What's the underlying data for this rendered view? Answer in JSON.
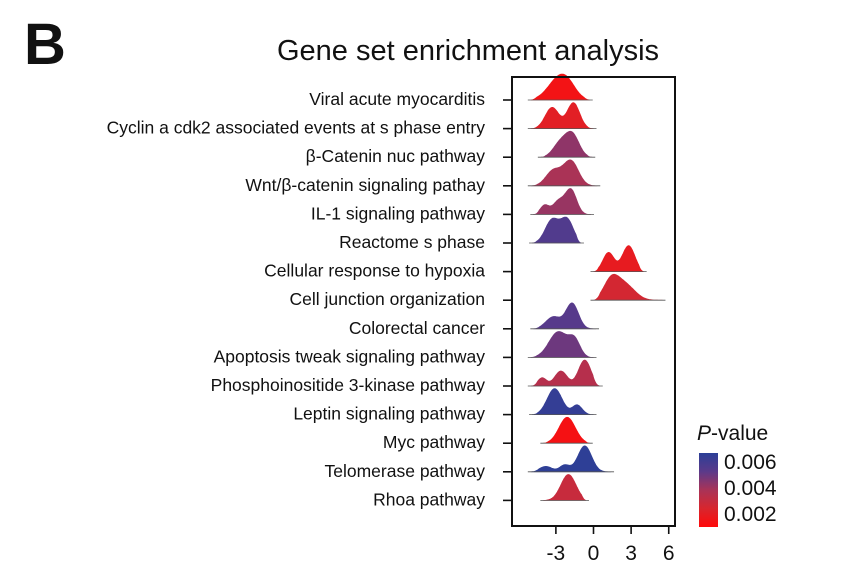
{
  "panel_label": "B",
  "legend": {
    "title_italic": "P",
    "title_rest": "-value",
    "ticks": [
      "0.006",
      "0.004",
      "0.002"
    ],
    "color_stops": [
      "#2b3f97",
      "#5b3a8a",
      "#a93357",
      "#d8262e",
      "#ff0a0a"
    ]
  },
  "chart_data": {
    "type": "ridgeline",
    "title": "Gene set enrichment analysis",
    "xlabel": "",
    "ylabel": "",
    "xlim": [
      -6.5,
      6.5
    ],
    "x_ticks": [
      -3,
      0,
      3,
      6
    ],
    "x_tick_labels": [
      "-3",
      "0",
      "3",
      "6"
    ],
    "ylabels": [
      "Viral acute myocarditis",
      "Cyclin a cdk2 associated events at s phase entry",
      "β-Catenin nuc pathway",
      "Wnt/β-catenin signaling pathay",
      "IL-1 signaling pathway",
      "Reactome s phase",
      "Cellular response to hypoxia",
      "Cell junction organization",
      "Colorectal cancer",
      "Apoptosis tweak signaling pathway",
      "Phosphoinositide 3-kinase pathway",
      "Leptin signaling pathway",
      "Myc pathway",
      "Telomerase pathway",
      "Rhoa pathway"
    ],
    "series": [
      {
        "label": "Viral acute myocarditis",
        "p_value": 0.0005,
        "range": [
          -5.0,
          -0.3
        ],
        "peaks": [
          {
            "mu": -2.7,
            "sigma": 0.9,
            "h": 1.0
          },
          {
            "mu": -2.0,
            "sigma": 0.6,
            "h": 0.25
          }
        ]
      },
      {
        "label": "Cyclin a cdk2 associated events at s phase entry",
        "p_value": 0.0012,
        "range": [
          -5.0,
          0.0
        ],
        "peaks": [
          {
            "mu": -3.3,
            "sigma": 0.55,
            "h": 0.7
          },
          {
            "mu": -1.6,
            "sigma": 0.5,
            "h": 0.85
          }
        ]
      },
      {
        "label": "β-Catenin nuc pathway",
        "p_value": 0.0038,
        "range": [
          -4.2,
          -0.1
        ],
        "peaks": [
          {
            "mu": -2.7,
            "sigma": 0.55,
            "h": 0.55
          },
          {
            "mu": -1.7,
            "sigma": 0.55,
            "h": 0.95
          }
        ]
      },
      {
        "label": "Wnt/β-catenin signaling pathay",
        "p_value": 0.0032,
        "range": [
          -5.0,
          0.3
        ],
        "peaks": [
          {
            "mu": -3.2,
            "sigma": 0.6,
            "h": 0.55
          },
          {
            "mu": -1.8,
            "sigma": 0.6,
            "h": 0.9
          }
        ]
      },
      {
        "label": "IL-1 signaling pathway",
        "p_value": 0.0036,
        "range": [
          -4.8,
          -0.2
        ],
        "peaks": [
          {
            "mu": -3.9,
            "sigma": 0.35,
            "h": 0.35
          },
          {
            "mu": -2.8,
            "sigma": 0.45,
            "h": 0.5
          },
          {
            "mu": -1.8,
            "sigma": 0.45,
            "h": 0.95
          }
        ]
      },
      {
        "label": "Reactome s phase",
        "p_value": 0.0052,
        "range": [
          -4.9,
          -1.0
        ],
        "peaks": [
          {
            "mu": -3.3,
            "sigma": 0.55,
            "h": 0.75
          },
          {
            "mu": -2.1,
            "sigma": 0.5,
            "h": 0.75
          }
        ]
      },
      {
        "label": "Cellular response to hypoxia",
        "p_value": 0.001,
        "range": [
          0.0,
          4.0
        ],
        "peaks": [
          {
            "mu": 1.2,
            "sigma": 0.45,
            "h": 0.7
          },
          {
            "mu": 2.8,
            "sigma": 0.5,
            "h": 0.95
          }
        ]
      },
      {
        "label": "Cell junction organization",
        "p_value": 0.0018,
        "range": [
          0.0,
          5.5
        ],
        "peaks": [
          {
            "mu": 1.4,
            "sigma": 0.6,
            "h": 0.85
          },
          {
            "mu": 2.5,
            "sigma": 0.8,
            "h": 0.7
          }
        ]
      },
      {
        "label": "Colorectal cancer",
        "p_value": 0.005,
        "range": [
          -4.8,
          0.2
        ],
        "peaks": [
          {
            "mu": -3.2,
            "sigma": 0.6,
            "h": 0.45
          },
          {
            "mu": -1.7,
            "sigma": 0.5,
            "h": 0.95
          }
        ]
      },
      {
        "label": "Apoptosis tweak signaling pathway",
        "p_value": 0.0045,
        "range": [
          -5.0,
          0.0
        ],
        "peaks": [
          {
            "mu": -2.8,
            "sigma": 0.75,
            "h": 0.75
          },
          {
            "mu": -1.5,
            "sigma": 0.45,
            "h": 0.45
          }
        ]
      },
      {
        "label": "Phosphoinositide 3-kinase pathway",
        "p_value": 0.0028,
        "range": [
          -5.0,
          0.5
        ],
        "peaks": [
          {
            "mu": -4.1,
            "sigma": 0.35,
            "h": 0.3
          },
          {
            "mu": -2.6,
            "sigma": 0.5,
            "h": 0.55
          },
          {
            "mu": -0.7,
            "sigma": 0.5,
            "h": 0.95
          }
        ]
      },
      {
        "label": "Leptin signaling pathway",
        "p_value": 0.0062,
        "range": [
          -4.9,
          0.0
        ],
        "peaks": [
          {
            "mu": -3.1,
            "sigma": 0.6,
            "h": 0.95
          },
          {
            "mu": -1.3,
            "sigma": 0.4,
            "h": 0.35
          }
        ]
      },
      {
        "label": "Myc pathway",
        "p_value": 0.0004,
        "range": [
          -4.0,
          -0.3
        ],
        "peaks": [
          {
            "mu": -2.1,
            "sigma": 0.65,
            "h": 1.0
          }
        ]
      },
      {
        "label": "Telomerase pathway",
        "p_value": 0.0064,
        "range": [
          -5.0,
          1.4
        ],
        "peaks": [
          {
            "mu": -3.8,
            "sigma": 0.5,
            "h": 0.2
          },
          {
            "mu": -2.3,
            "sigma": 0.4,
            "h": 0.25
          },
          {
            "mu": -0.7,
            "sigma": 0.55,
            "h": 0.95
          }
        ]
      },
      {
        "label": "Rhoa pathway",
        "p_value": 0.0022,
        "range": [
          -4.0,
          -0.6
        ],
        "peaks": [
          {
            "mu": -2.0,
            "sigma": 0.6,
            "h": 1.0
          }
        ]
      }
    ]
  }
}
